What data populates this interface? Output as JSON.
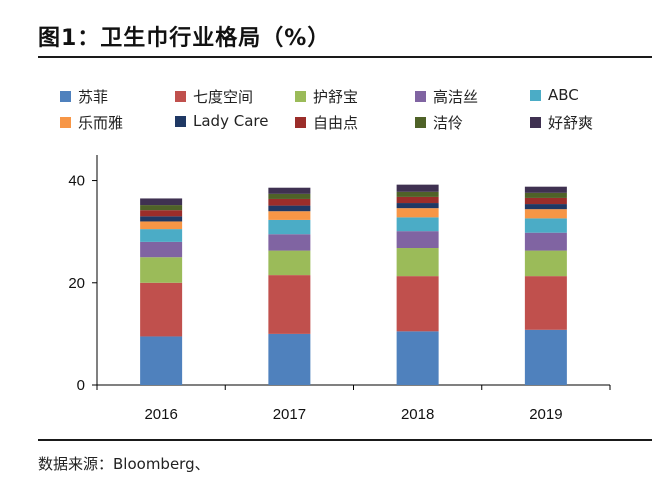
{
  "header": {
    "title": "图1：卫生巾行业格局（%）"
  },
  "footer": {
    "source": "数据来源：Bloomberg、"
  },
  "chart_data": {
    "type": "bar",
    "stacked": true,
    "categories": [
      "2016",
      "2017",
      "2018",
      "2019"
    ],
    "ylim": [
      0,
      45
    ],
    "yticks": [
      0,
      20,
      40
    ],
    "grid": false,
    "legend_position": "top",
    "series": [
      {
        "name": "苏菲",
        "color": "#4f81bd",
        "values": [
          9.5,
          10.0,
          10.5,
          10.8
        ]
      },
      {
        "name": "七度空间",
        "color": "#c0504d",
        "values": [
          10.5,
          11.5,
          10.8,
          10.5
        ]
      },
      {
        "name": "护舒宝",
        "color": "#9bbb59",
        "values": [
          5.0,
          4.8,
          5.5,
          5.0
        ]
      },
      {
        "name": "高洁丝",
        "color": "#8064a2",
        "values": [
          3.0,
          3.2,
          3.3,
          3.5
        ]
      },
      {
        "name": "ABC",
        "color": "#4bacc6",
        "values": [
          2.5,
          2.8,
          2.7,
          2.8
        ]
      },
      {
        "name": "乐而雅",
        "color": "#f79646",
        "values": [
          1.5,
          1.7,
          1.8,
          1.8
        ]
      },
      {
        "name": "Lady Care",
        "color": "#1f3864",
        "values": [
          1.0,
          1.1,
          1.0,
          1.0
        ]
      },
      {
        "name": "自由点",
        "color": "#9b2d2a",
        "values": [
          1.2,
          1.3,
          1.2,
          1.2
        ]
      },
      {
        "name": "洁伶",
        "color": "#4f6228",
        "values": [
          1.0,
          1.0,
          1.0,
          1.0
        ]
      },
      {
        "name": "好舒爽",
        "color": "#3f3151",
        "values": [
          1.3,
          1.2,
          1.4,
          1.2
        ]
      }
    ]
  }
}
